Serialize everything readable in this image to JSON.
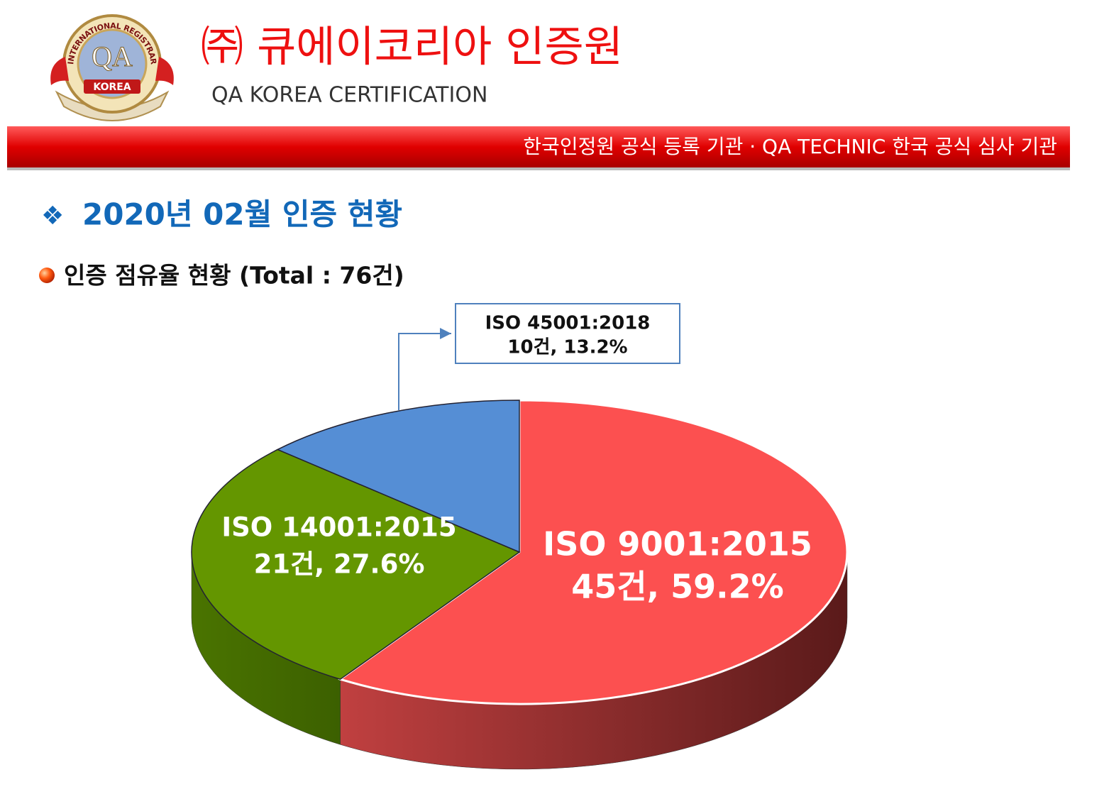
{
  "header": {
    "logo_text": [
      "INTERNATIONAL REGISTRAR",
      "QA",
      "KOREA"
    ],
    "company_name": "㈜ 큐에이코리아 인증원",
    "company_name_en": "QA KOREA CERTIFICATION",
    "banner": "한국인정원 공식 등록 기관  ·  QA TECHNIC 한국 공식 심사 기관"
  },
  "section_bullet": "❖",
  "section_title": "2020년 02월 인증 현황",
  "chart_data": {
    "type": "pie",
    "title": "인증 점유율 현황 (Total : 76건)",
    "categories": [
      "ISO 9001:2015",
      "ISO 14001:2015",
      "ISO 45001:2018"
    ],
    "values": [
      59.2,
      27.6,
      13.2
    ],
    "value_labels": [
      "45건, 59.2%",
      "21건, 27.6%",
      "10건, 13.2%"
    ],
    "colors": [
      "#fc5050",
      "#649600",
      "#558ed5"
    ]
  }
}
